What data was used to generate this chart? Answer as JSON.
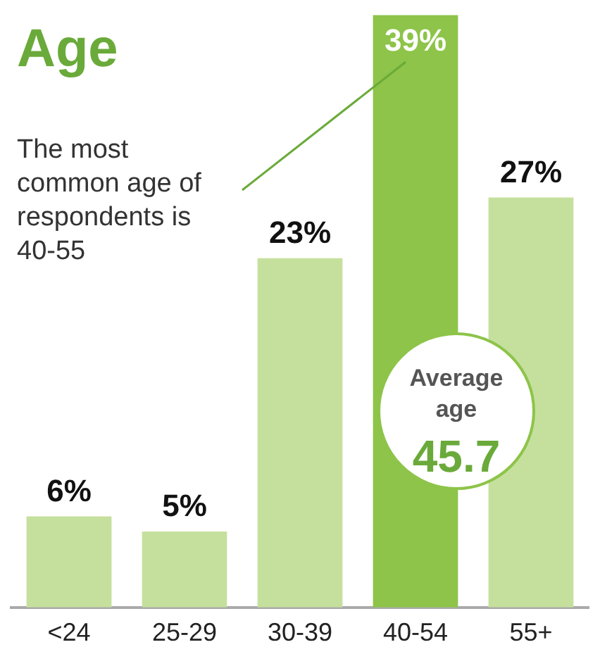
{
  "chart_data": {
    "type": "bar",
    "title": "Age",
    "categories": [
      "<24",
      "25-29",
      "30-39",
      "40-54",
      "55+"
    ],
    "values": [
      6,
      5,
      23,
      39,
      27
    ],
    "colors": [
      "#c5e09d",
      "#c5e09d",
      "#c5e09d",
      "#8dc449",
      "#c5e09d"
    ],
    "value_labels": [
      "6%",
      "5%",
      "23%",
      "39%",
      "27%"
    ],
    "grid": false,
    "legend": false,
    "annotations": [
      "The most common age of respondents is 40-55",
      "Average age",
      "45.7"
    ]
  }
}
